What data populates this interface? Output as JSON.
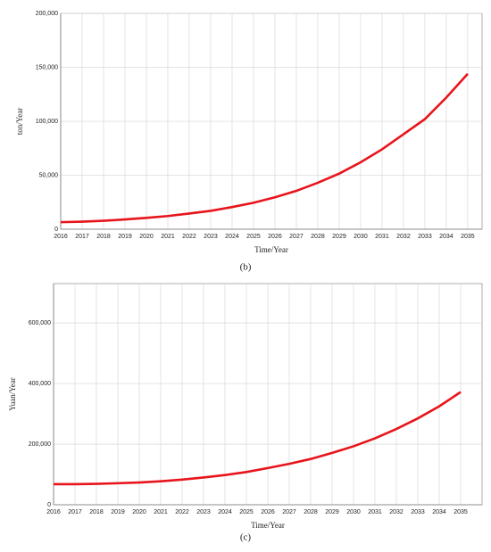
{
  "chart_data": [
    {
      "type": "line",
      "caption": "(b)",
      "x_label": "Time/Year",
      "y_label": "ton/Year",
      "x": [
        2016,
        2017,
        2018,
        2019,
        2020,
        2021,
        2022,
        2023,
        2024,
        2025,
        2026,
        2027,
        2028,
        2029,
        2030,
        2031,
        2032,
        2033,
        2034,
        2035
      ],
      "series": [
        {
          "color": "#e8141b",
          "values": [
            6500,
            7000,
            7800,
            9000,
            10500,
            12200,
            14500,
            17000,
            20500,
            24500,
            29500,
            35500,
            43000,
            51500,
            62000,
            74000,
            88000,
            102000,
            122000,
            144000
          ]
        }
      ],
      "xlim": [
        2016,
        2035.67
      ],
      "xticks": [
        2016,
        2017,
        2018,
        2019,
        2020,
        2021,
        2022,
        2023,
        2024,
        2025,
        2026,
        2027,
        2028,
        2029,
        2030,
        2031,
        2032,
        2033,
        2034,
        2035
      ],
      "ylim": [
        0,
        200000
      ],
      "yticks": [
        0,
        {
          "value": 50000,
          "label": "50,000"
        },
        {
          "value": 100000,
          "label": "100,000"
        },
        {
          "value": 150000,
          "label": "150,000"
        },
        {
          "value": 200000,
          "label": "200,000"
        }
      ],
      "grid": true
    },
    {
      "type": "line",
      "caption": "(c)",
      "x_label": "Time/Year",
      "y_label": "Yuan/Year",
      "x": [
        2016,
        2017,
        2018,
        2019,
        2020,
        2021,
        2022,
        2023,
        2024,
        2025,
        2026,
        2027,
        2028,
        2029,
        2030,
        2031,
        2032,
        2033,
        2034,
        2035
      ],
      "series": [
        {
          "color": "#e8141b",
          "values": [
            68000,
            68000,
            69000,
            71000,
            73500,
            77500,
            83000,
            90000,
            98000,
            108000,
            121000,
            135000,
            151000,
            171000,
            193000,
            219000,
            250000,
            285000,
            325000,
            372000
          ]
        }
      ],
      "xlim": [
        2016,
        2036
      ],
      "xticks": [
        2016,
        2017,
        2018,
        2019,
        2020,
        2021,
        2022,
        2023,
        2024,
        2025,
        2026,
        2027,
        2028,
        2029,
        2030,
        2031,
        2032,
        2033,
        2034,
        2035
      ],
      "ylim": [
        0,
        730000
      ],
      "yticks": [
        0,
        {
          "value": 200000,
          "label": "200,000"
        },
        {
          "value": 400000,
          "label": "400,000"
        },
        {
          "value": 600000,
          "label": "600,000"
        }
      ],
      "grid": true
    }
  ]
}
